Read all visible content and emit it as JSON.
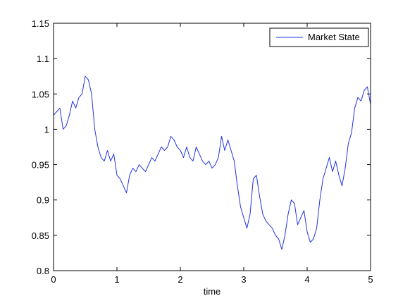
{
  "chart_data": {
    "type": "line",
    "xlabel": "time",
    "ylabel": "",
    "title": "",
    "xlim": [
      0,
      5
    ],
    "ylim": [
      0.8,
      1.15
    ],
    "xticks": [
      0,
      1,
      2,
      3,
      4,
      5
    ],
    "xtick_labels": [
      "0",
      "1",
      "2",
      "3",
      "4",
      "5"
    ],
    "yticks": [
      0.8,
      0.85,
      0.9,
      0.95,
      1.0,
      1.05,
      1.1,
      1.15
    ],
    "ytick_labels": [
      "0.8",
      "0.85",
      "0.9",
      "0.95",
      "1",
      "1.05",
      "1.1",
      "1.15"
    ],
    "grid": false,
    "legend": {
      "position": "top-right",
      "entries": [
        "Market State"
      ]
    },
    "series": [
      {
        "name": "Market State",
        "color": "#2233dd",
        "x": [
          0,
          0.05,
          0.1,
          0.15,
          0.2,
          0.25,
          0.3,
          0.35,
          0.4,
          0.45,
          0.5,
          0.55,
          0.6,
          0.65,
          0.7,
          0.75,
          0.8,
          0.85,
          0.9,
          0.95,
          1.0,
          1.05,
          1.1,
          1.15,
          1.2,
          1.25,
          1.3,
          1.35,
          1.4,
          1.45,
          1.5,
          1.55,
          1.6,
          1.65,
          1.7,
          1.75,
          1.8,
          1.85,
          1.9,
          1.95,
          2.0,
          2.05,
          2.1,
          2.15,
          2.2,
          2.25,
          2.3,
          2.35,
          2.4,
          2.45,
          2.5,
          2.55,
          2.6,
          2.65,
          2.7,
          2.75,
          2.8,
          2.85,
          2.9,
          2.95,
          3.0,
          3.05,
          3.1,
          3.15,
          3.2,
          3.25,
          3.3,
          3.35,
          3.4,
          3.45,
          3.5,
          3.55,
          3.6,
          3.65,
          3.7,
          3.75,
          3.8,
          3.85,
          3.9,
          3.95,
          4.0,
          4.05,
          4.1,
          4.15,
          4.2,
          4.25,
          4.3,
          4.35,
          4.4,
          4.45,
          4.5,
          4.55,
          4.6,
          4.65,
          4.7,
          4.75,
          4.8,
          4.85,
          4.9,
          4.95,
          5.0
        ],
        "values": [
          1.02,
          1.025,
          1.03,
          1.0,
          1.005,
          1.02,
          1.04,
          1.03,
          1.045,
          1.05,
          1.075,
          1.07,
          1.05,
          1.0,
          0.975,
          0.96,
          0.955,
          0.97,
          0.955,
          0.965,
          0.935,
          0.93,
          0.92,
          0.91,
          0.935,
          0.945,
          0.94,
          0.95,
          0.945,
          0.94,
          0.95,
          0.96,
          0.955,
          0.965,
          0.975,
          0.97,
          0.975,
          0.99,
          0.985,
          0.975,
          0.97,
          0.96,
          0.975,
          0.96,
          0.955,
          0.975,
          0.965,
          0.955,
          0.95,
          0.955,
          0.945,
          0.95,
          0.96,
          0.99,
          0.97,
          0.985,
          0.97,
          0.955,
          0.92,
          0.89,
          0.875,
          0.86,
          0.88,
          0.93,
          0.935,
          0.905,
          0.88,
          0.87,
          0.865,
          0.86,
          0.85,
          0.845,
          0.83,
          0.85,
          0.88,
          0.9,
          0.895,
          0.865,
          0.875,
          0.885,
          0.855,
          0.84,
          0.845,
          0.86,
          0.9,
          0.93,
          0.945,
          0.96,
          0.94,
          0.955,
          0.935,
          0.92,
          0.945,
          0.98,
          0.995,
          1.03,
          1.045,
          1.04,
          1.055,
          1.06,
          1.035
        ]
      }
    ]
  }
}
